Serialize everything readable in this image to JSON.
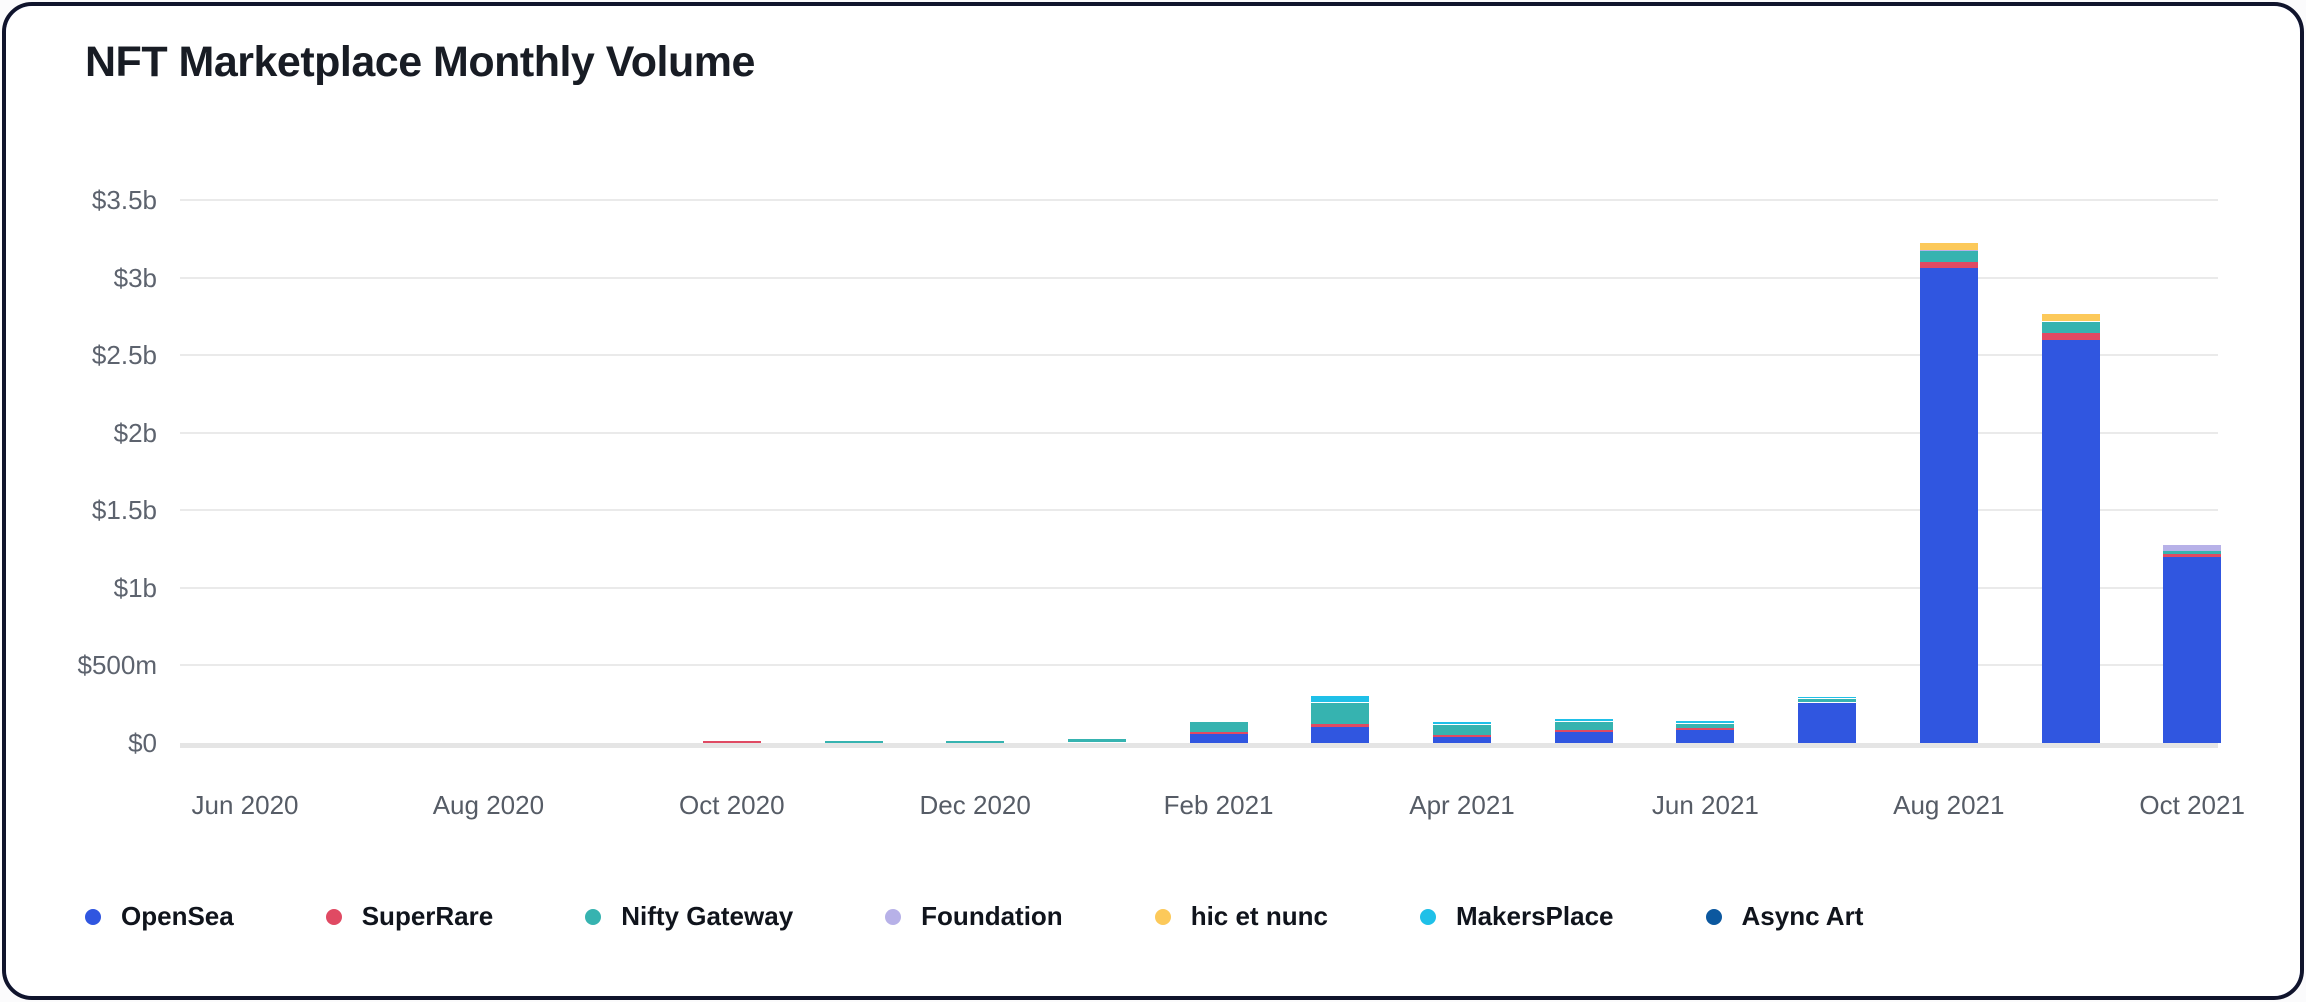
{
  "card": {
    "title": "NFT Marketplace Monthly Volume"
  },
  "chart_data": {
    "type": "bar",
    "stacked": true,
    "title": "NFT Marketplace Monthly Volume",
    "unit": "millions of USD",
    "grid": true,
    "legend_position": "bottom",
    "x": [
      "Jun 2020",
      "Jul 2020",
      "Aug 2020",
      "Sep 2020",
      "Oct 2020",
      "Nov 2020",
      "Dec 2020",
      "Jan 2021",
      "Feb 2021",
      "Mar 2021",
      "Apr 2021",
      "May 2021",
      "Jun 2021",
      "Jul 2021",
      "Aug 2021",
      "Sep 2021",
      "Oct 2021"
    ],
    "x_tick_labels": [
      "Jun 2020",
      "Aug 2020",
      "Oct 2020",
      "Dec 2020",
      "Feb 2021",
      "Apr 2021",
      "Jun 2021",
      "Aug 2021",
      "Oct 2021"
    ],
    "y_tick_labels": [
      "$0",
      "$500m",
      "$1b",
      "$1.5b",
      "$2b",
      "$2.5b",
      "$3b",
      "$3.5b"
    ],
    "y_tick_values_musd": [
      0,
      500,
      1000,
      1500,
      2000,
      2500,
      3000,
      3500
    ],
    "ylim_musd": [
      0,
      3500
    ],
    "series": [
      {
        "name": "OpenSea",
        "color": "#3056e0",
        "values_musd": [
          1,
          1,
          2,
          2,
          0,
          1,
          1,
          2,
          60,
          103,
          40,
          70,
          85,
          260,
          3060,
          2600,
          1200
        ]
      },
      {
        "name": "SuperRare",
        "color": "#e04a63",
        "values_musd": [
          2,
          2,
          3,
          3,
          12,
          2,
          2,
          2,
          12,
          19,
          12,
          13,
          12,
          5,
          40,
          40,
          20
        ]
      },
      {
        "name": "Nifty Gateway",
        "color": "#36b3b0",
        "values_musd": [
          0,
          1,
          2,
          3,
          3,
          12,
          12,
          22,
          65,
          135,
          65,
          50,
          25,
          20,
          70,
          75,
          20
        ]
      },
      {
        "name": "Foundation",
        "color": "#b7b1e8",
        "values_musd": [
          0,
          0,
          0,
          0,
          0,
          0,
          0,
          2,
          2,
          3,
          3,
          3,
          3,
          3,
          8,
          5,
          35
        ]
      },
      {
        "name": "hic et nunc",
        "color": "#fcc95a",
        "values_musd": [
          0,
          0,
          0,
          0,
          0,
          0,
          0,
          0,
          0,
          2,
          2,
          3,
          3,
          3,
          45,
          48,
          5
        ]
      },
      {
        "name": "MakersPlace",
        "color": "#1fc0e8",
        "values_musd": [
          0,
          0,
          1,
          1,
          1,
          1,
          1,
          2,
          5,
          39,
          13,
          15,
          13,
          8,
          5,
          5,
          3
        ]
      },
      {
        "name": "Async Art",
        "color": "#0c589f",
        "values_musd": [
          0,
          0,
          0,
          0,
          1,
          1,
          1,
          1,
          2,
          2,
          2,
          2,
          2,
          2,
          3,
          3,
          2
        ]
      }
    ]
  }
}
